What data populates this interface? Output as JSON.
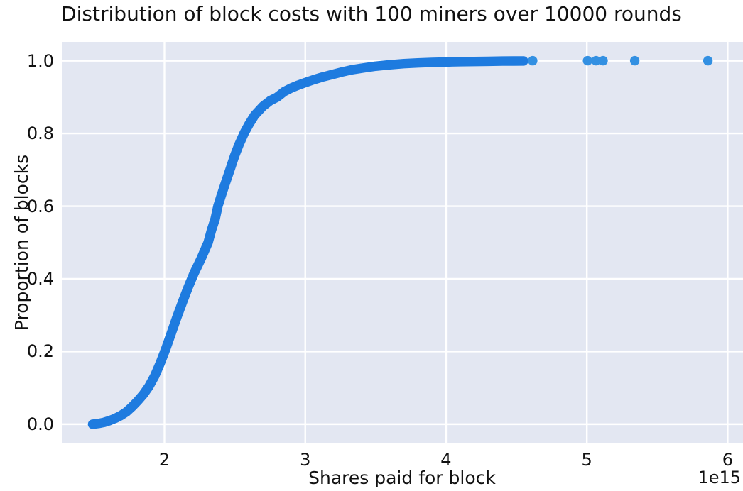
{
  "figure": {
    "title": "Distribution of block costs with 100 miners over 10000 rounds"
  },
  "chart_data": {
    "type": "scatter",
    "subtype": "ecdf",
    "title": "Distribution of block costs with 100 miners over 10000 rounds",
    "xlabel": "Shares paid for block",
    "ylabel": "Proportion of blocks",
    "x_offset_text": "1e15",
    "x_unit_multiplier": 1000000000000000.0,
    "xlim": [
      1.271,
      6.109
    ],
    "ylim": [
      -0.051,
      1.052
    ],
    "x_ticks": [
      2,
      3,
      4,
      5,
      6
    ],
    "x_tick_labels": [
      "2",
      "3",
      "4",
      "5",
      "6"
    ],
    "y_ticks": [
      0.0,
      0.2,
      0.4,
      0.6,
      0.8,
      1.0
    ],
    "y_tick_labels": [
      "0.0",
      "0.2",
      "0.4",
      "0.6",
      "0.8",
      "1.0"
    ],
    "grid": true,
    "legend": false,
    "background_color": "#e3e7f2",
    "gridline_color": "#ffffff",
    "marker_color": "#1e7bdf",
    "tail_marker_color": "#3390e2",
    "marker_radius_px": 6.7,
    "cdf_points": [
      [
        1.49,
        0.0
      ],
      [
        1.53,
        0.002
      ],
      [
        1.57,
        0.005
      ],
      [
        1.61,
        0.01
      ],
      [
        1.65,
        0.016
      ],
      [
        1.69,
        0.024
      ],
      [
        1.73,
        0.034
      ],
      [
        1.77,
        0.048
      ],
      [
        1.81,
        0.064
      ],
      [
        1.85,
        0.082
      ],
      [
        1.89,
        0.104
      ],
      [
        1.93,
        0.132
      ],
      [
        1.97,
        0.168
      ],
      [
        2.01,
        0.208
      ],
      [
        2.05,
        0.252
      ],
      [
        2.09,
        0.296
      ],
      [
        2.13,
        0.338
      ],
      [
        2.17,
        0.378
      ],
      [
        2.21,
        0.415
      ],
      [
        2.26,
        0.455
      ],
      [
        2.31,
        0.5
      ],
      [
        2.335,
        0.535
      ],
      [
        2.36,
        0.565
      ],
      [
        2.38,
        0.6
      ],
      [
        2.4,
        0.625
      ],
      [
        2.43,
        0.66
      ],
      [
        2.465,
        0.7
      ],
      [
        2.5,
        0.74
      ],
      [
        2.53,
        0.77
      ],
      [
        2.565,
        0.8
      ],
      [
        2.6,
        0.825
      ],
      [
        2.64,
        0.85
      ],
      [
        2.7,
        0.875
      ],
      [
        2.75,
        0.89
      ],
      [
        2.8,
        0.9
      ],
      [
        2.85,
        0.915
      ],
      [
        2.9,
        0.925
      ],
      [
        2.95,
        0.933
      ],
      [
        3.0,
        0.94
      ],
      [
        3.06,
        0.948
      ],
      [
        3.12,
        0.955
      ],
      [
        3.19,
        0.962
      ],
      [
        3.26,
        0.969
      ],
      [
        3.33,
        0.975
      ],
      [
        3.41,
        0.98
      ],
      [
        3.5,
        0.985
      ],
      [
        3.6,
        0.989
      ],
      [
        3.7,
        0.992
      ],
      [
        3.8,
        0.994
      ],
      [
        3.9,
        0.9955
      ],
      [
        4.0,
        0.9965
      ],
      [
        4.1,
        0.9975
      ],
      [
        4.2,
        0.998
      ],
      [
        4.3,
        0.9985
      ],
      [
        4.4,
        0.999
      ],
      [
        4.48,
        0.9992
      ],
      [
        4.55,
        0.9994
      ]
    ],
    "tail_points": [
      [
        4.615,
        1.0
      ],
      [
        5.005,
        1.0
      ],
      [
        5.065,
        1.0
      ],
      [
        5.115,
        1.0
      ],
      [
        5.34,
        1.0
      ],
      [
        5.86,
        1.0
      ]
    ]
  }
}
